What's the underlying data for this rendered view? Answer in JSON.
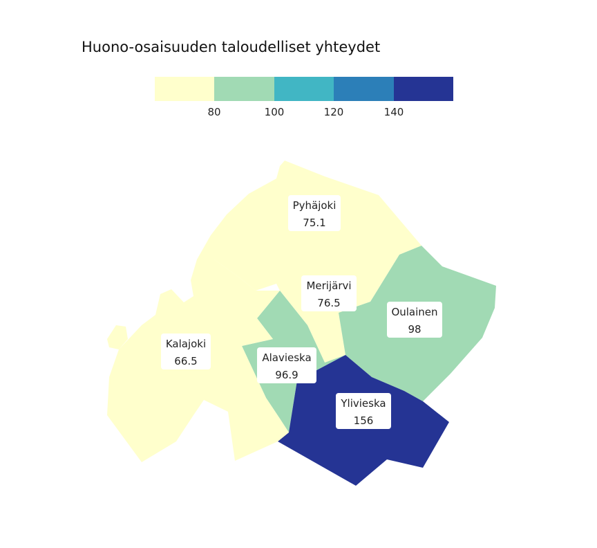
{
  "title": "Huono-osaisuuden taloudelliset yhteydet",
  "legend": {
    "colors": [
      "#ffffcc",
      "#a1dab4",
      "#41b6c4",
      "#2c7fb8",
      "#253494"
    ],
    "ticks": [
      "80",
      "100",
      "120",
      "140"
    ]
  },
  "regions": [
    {
      "name": "Pyhäjoki",
      "value": "75.1",
      "color": "#ffffcc"
    },
    {
      "name": "Merijärvi",
      "value": "76.5",
      "color": "#ffffcc"
    },
    {
      "name": "Kalajoki",
      "value": "66.5",
      "color": "#ffffcc"
    },
    {
      "name": "Oulainen",
      "value": "98",
      "color": "#a1dab4"
    },
    {
      "name": "Alavieska",
      "value": "96.9",
      "color": "#a1dab4"
    },
    {
      "name": "Ylivieska",
      "value": "156",
      "color": "#253494"
    }
  ]
}
